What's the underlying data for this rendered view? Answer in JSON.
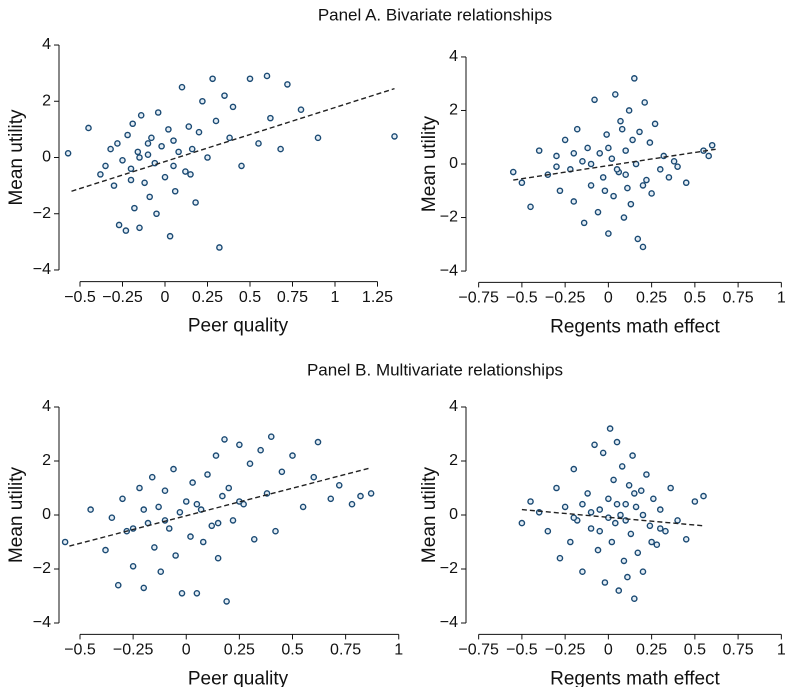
{
  "panel_titles": [
    "Panel A. Bivariate relationships",
    "Panel B. Multivariate relationships"
  ],
  "chart_data": [
    {
      "type": "scatter",
      "xlabel": "Peer quality",
      "ylabel": "Mean utility",
      "color": "#1b4a73",
      "marker_fill": "#e3edf5",
      "fit_color": "#222222",
      "x": [
        -0.57,
        -0.45,
        -0.38,
        -0.35,
        -0.32,
        -0.3,
        -0.28,
        -0.27,
        -0.25,
        -0.23,
        -0.22,
        -0.2,
        -0.19,
        -0.18,
        -0.16,
        -0.15,
        -0.14,
        -0.12,
        -0.1,
        -0.09,
        -0.08,
        -0.06,
        -0.05,
        -0.04,
        -0.02,
        0,
        0.02,
        0.03,
        0.05,
        0.06,
        0.08,
        0.1,
        0.12,
        0.14,
        0.16,
        0.18,
        0.2,
        0.22,
        0.25,
        0.28,
        0.3,
        0.32,
        0.35,
        0.38,
        0.4,
        0.45,
        0.5,
        0.55,
        0.6,
        0.62,
        0.68,
        0.72,
        0.8,
        0.9,
        1.35,
        -0.2,
        -0.15,
        -0.1,
        0.05,
        0.15
      ],
      "y": [
        0.15,
        1.05,
        -0.6,
        -0.3,
        0.3,
        -1.0,
        0.5,
        -2.4,
        -0.1,
        -2.6,
        0.8,
        -0.4,
        1.2,
        -1.8,
        0.2,
        -2.5,
        1.5,
        -0.9,
        0.1,
        -1.4,
        0.7,
        -0.2,
        -2.0,
        1.6,
        0.4,
        -0.7,
        1.0,
        -2.8,
        0.6,
        -1.2,
        0.2,
        2.5,
        -0.5,
        1.1,
        0.3,
        -1.6,
        0.9,
        2.0,
        0.0,
        2.8,
        1.3,
        -3.2,
        2.2,
        0.7,
        1.8,
        -0.3,
        2.8,
        0.5,
        2.9,
        1.4,
        0.3,
        2.6,
        1.7,
        0.7,
        0.75,
        -0.8,
        0.0,
        0.5,
        -0.3,
        -0.6
      ],
      "fit": {
        "x": [
          -0.55,
          1.35
        ],
        "y": [
          -1.2,
          2.45
        ]
      },
      "xlim": [
        -0.6,
        1.4
      ],
      "ylim": [
        -4.2,
        4.2
      ],
      "xticks": [
        {
          "value": -0.5,
          "label": "−0.5"
        },
        {
          "value": -0.25,
          "label": "−0.25"
        },
        0,
        0.25,
        0.5,
        0.75,
        1,
        1.25
      ],
      "yticks": [
        {
          "value": -4,
          "label": "−4"
        },
        {
          "value": -2,
          "label": "−2"
        },
        0,
        2,
        4
      ]
    },
    {
      "type": "scatter",
      "xlabel": "Regents math effect",
      "ylabel": "Mean utility",
      "color": "#1b4a73",
      "marker_fill": "#e3edf5",
      "fit_color": "#222222",
      "x": [
        -0.55,
        -0.5,
        -0.45,
        -0.4,
        -0.35,
        -0.3,
        -0.28,
        -0.25,
        -0.22,
        -0.2,
        -0.18,
        -0.15,
        -0.14,
        -0.12,
        -0.1,
        -0.08,
        -0.06,
        -0.05,
        -0.03,
        -0.01,
        0,
        0.02,
        0.03,
        0.04,
        0.06,
        0.07,
        0.09,
        0.1,
        0.11,
        0.12,
        0.13,
        0.15,
        0.16,
        0.17,
        0.18,
        0.2,
        0.21,
        0.22,
        0.24,
        0.25,
        0.27,
        0.3,
        0.32,
        0.35,
        0.38,
        0.4,
        0.45,
        0.55,
        0.58,
        0.6,
        -0.3,
        -0.1,
        0,
        0.05,
        0.1,
        -0.2,
        0.14,
        0.08,
        -0.02,
        0.2
      ],
      "y": [
        -0.3,
        -0.7,
        -1.6,
        0.5,
        -0.4,
        0.3,
        -1.0,
        0.9,
        -0.2,
        -1.4,
        1.3,
        0.1,
        -2.2,
        0.6,
        -0.8,
        2.4,
        -1.8,
        0.4,
        -0.5,
        1.1,
        -2.6,
        0.2,
        -1.2,
        2.6,
        -0.3,
        1.6,
        -2.0,
        0.5,
        -0.9,
        2.0,
        -1.5,
        3.2,
        0.0,
        -2.8,
        1.2,
        -3.1,
        2.3,
        -0.6,
        0.8,
        -1.1,
        1.5,
        -0.2,
        0.3,
        -0.5,
        0.1,
        -0.1,
        -0.7,
        0.5,
        0.3,
        0.7,
        -0.1,
        0.0,
        0.6,
        -0.2,
        -0.4,
        0.4,
        0.9,
        1.3,
        -1.0,
        -0.8
      ],
      "fit": {
        "x": [
          -0.55,
          0.62
        ],
        "y": [
          -0.6,
          0.55
        ]
      },
      "xlim": [
        -0.8,
        1.05
      ],
      "ylim": [
        -4.2,
        4.2
      ],
      "xticks": [
        {
          "value": -0.75,
          "label": "−0.75"
        },
        {
          "value": -0.5,
          "label": "−0.5"
        },
        {
          "value": -0.25,
          "label": "−0.25"
        },
        0,
        0.25,
        0.5,
        0.75,
        1
      ],
      "yticks": [
        {
          "value": -4,
          "label": "−4"
        },
        {
          "value": -2,
          "label": "−2"
        },
        0,
        2,
        4
      ]
    },
    {
      "type": "scatter",
      "xlabel": "Peer quality",
      "ylabel": "Mean utility",
      "color": "#1b4a73",
      "marker_fill": "#e3edf5",
      "fit_color": "#222222",
      "x": [
        -0.57,
        -0.45,
        -0.38,
        -0.35,
        -0.32,
        -0.3,
        -0.28,
        -0.25,
        -0.22,
        -0.2,
        -0.18,
        -0.16,
        -0.15,
        -0.13,
        -0.12,
        -0.1,
        -0.08,
        -0.06,
        -0.05,
        -0.03,
        -0.02,
        0,
        0.02,
        0.03,
        0.05,
        0.07,
        0.08,
        0.1,
        0.12,
        0.14,
        0.15,
        0.17,
        0.18,
        0.19,
        0.2,
        0.22,
        0.25,
        0.27,
        0.3,
        0.32,
        0.35,
        0.38,
        0.4,
        0.42,
        0.45,
        0.5,
        0.55,
        0.6,
        0.62,
        0.68,
        0.72,
        0.78,
        0.82,
        0.87,
        -0.2,
        -0.1,
        0.05,
        0.15,
        0.25,
        -0.25
      ],
      "y": [
        -1.0,
        0.2,
        -1.3,
        -0.1,
        -2.6,
        0.6,
        -0.6,
        -1.9,
        1.0,
        -2.7,
        -0.3,
        1.4,
        -1.2,
        0.3,
        -2.1,
        0.9,
        -0.5,
        1.7,
        -1.5,
        0.1,
        -2.9,
        0.5,
        -0.8,
        1.2,
        -2.9,
        0.2,
        -1.0,
        1.5,
        -0.4,
        2.2,
        -1.6,
        0.7,
        2.8,
        -3.2,
        1.0,
        -0.2,
        2.6,
        0.4,
        1.9,
        -0.9,
        2.4,
        0.8,
        2.9,
        -0.6,
        1.6,
        2.2,
        0.3,
        1.4,
        2.7,
        0.6,
        1.1,
        0.4,
        0.7,
        0.8,
        0.2,
        -0.2,
        0.4,
        -0.3,
        0.5,
        -0.5
      ],
      "fit": {
        "x": [
          -0.55,
          0.87
        ],
        "y": [
          -1.15,
          1.75
        ]
      },
      "xlim": [
        -0.58,
        1.02
      ],
      "ylim": [
        -4.2,
        4.2
      ],
      "xticks": [
        {
          "value": -0.5,
          "label": "−0.5"
        },
        {
          "value": -0.25,
          "label": "−0.25"
        },
        0,
        0.25,
        0.5,
        0.75,
        1
      ],
      "yticks": [
        {
          "value": -4,
          "label": "−4"
        },
        {
          "value": -2,
          "label": "−2"
        },
        0,
        2,
        4
      ]
    },
    {
      "type": "scatter",
      "xlabel": "Regents math effect",
      "ylabel": "Mean utility",
      "color": "#1b4a73",
      "marker_fill": "#e3edf5",
      "fit_color": "#222222",
      "x": [
        -0.5,
        -0.45,
        -0.4,
        -0.35,
        -0.3,
        -0.28,
        -0.25,
        -0.22,
        -0.2,
        -0.18,
        -0.15,
        -0.12,
        -0.1,
        -0.08,
        -0.06,
        -0.05,
        -0.03,
        -0.02,
        0,
        0.01,
        0.02,
        0.03,
        0.04,
        0.05,
        0.06,
        0.07,
        0.08,
        0.09,
        0.1,
        0.11,
        0.12,
        0.13,
        0.14,
        0.15,
        0.16,
        0.17,
        0.19,
        0.2,
        0.22,
        0.24,
        0.26,
        0.28,
        0.3,
        0.33,
        0.36,
        0.4,
        0.45,
        0.5,
        0.55,
        -0.1,
        0,
        0.05,
        0.1,
        -0.2,
        0.2,
        0.3,
        -0.05,
        0.15,
        -0.15,
        0.25
      ],
      "y": [
        -0.3,
        0.5,
        0.1,
        -0.6,
        1.0,
        -1.6,
        0.3,
        -1.0,
        1.7,
        -0.2,
        -2.1,
        0.8,
        -0.5,
        2.6,
        -1.3,
        0.2,
        2.3,
        -2.5,
        0.6,
        3.2,
        -1.0,
        1.3,
        -0.3,
        2.7,
        -2.8,
        0.0,
        1.8,
        -1.7,
        0.4,
        -2.3,
        1.1,
        -0.7,
        2.2,
        -3.1,
        0.3,
        -1.4,
        0.9,
        -2.1,
        1.5,
        -0.4,
        0.6,
        -1.1,
        0.2,
        -0.6,
        1.0,
        -0.2,
        -0.9,
        0.5,
        0.7,
        0.1,
        -0.1,
        0.4,
        -0.2,
        -0.1,
        0.0,
        -0.5,
        -0.6,
        0.8,
        0.4,
        -1.0
      ],
      "fit": {
        "x": [
          -0.5,
          0.55
        ],
        "y": [
          0.2,
          -0.4
        ]
      },
      "xlim": [
        -0.8,
        1.05
      ],
      "ylim": [
        -4.2,
        4.2
      ],
      "xticks": [
        {
          "value": -0.75,
          "label": "−0.75"
        },
        {
          "value": -0.5,
          "label": "−0.5"
        },
        {
          "value": -0.25,
          "label": "−0.25"
        },
        0,
        0.25,
        0.5,
        0.75,
        1
      ],
      "yticks": [
        {
          "value": -4,
          "label": "−4"
        },
        {
          "value": -2,
          "label": "−2"
        },
        0,
        2,
        4
      ]
    }
  ]
}
